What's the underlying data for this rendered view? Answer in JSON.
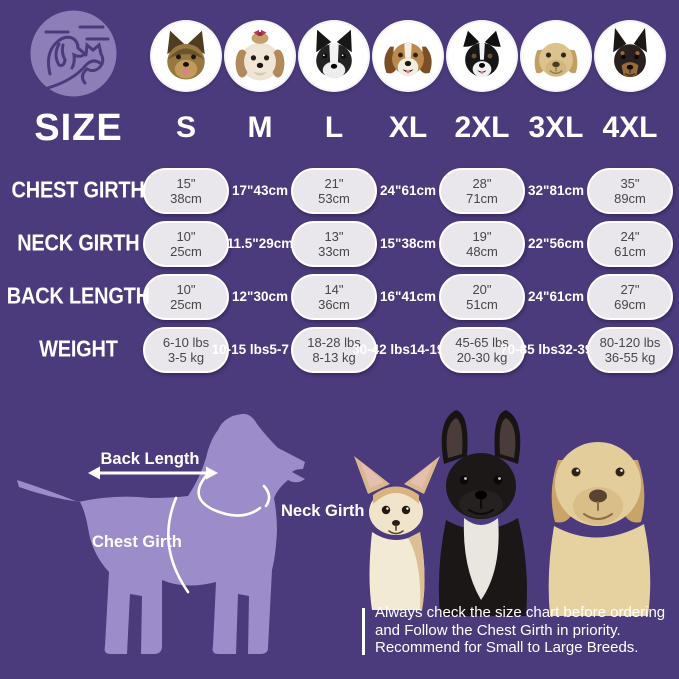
{
  "colors": {
    "background": "#4b3a7c",
    "pill_fill": "#e9e6ec",
    "silhouette": "#9c8cca",
    "logo_circle": "#8d7eb8"
  },
  "table": {
    "size_label": "SIZE",
    "sizes": [
      "S",
      "M",
      "L",
      "XL",
      "2XL",
      "3XL",
      "4XL"
    ],
    "breeds": [
      "yorkshire-terrier",
      "shih-tzu",
      "boston-terrier",
      "beagle",
      "border-collie",
      "labrador",
      "doberman"
    ],
    "rows": [
      {
        "label": "CHEST GIRTH",
        "values": [
          [
            "15\"",
            "38cm"
          ],
          [
            "17\"",
            "43cm"
          ],
          [
            "21\"",
            "53cm"
          ],
          [
            "24\"",
            "61cm"
          ],
          [
            "28\"",
            "71cm"
          ],
          [
            "32\"",
            "81cm"
          ],
          [
            "35\"",
            "89cm"
          ]
        ]
      },
      {
        "label": "NECK GIRTH",
        "values": [
          [
            "10\"",
            "25cm"
          ],
          [
            "11.5\"",
            "29cm"
          ],
          [
            "13\"",
            "33cm"
          ],
          [
            "15\"",
            "38cm"
          ],
          [
            "19\"",
            "48cm"
          ],
          [
            "22\"",
            "56cm"
          ],
          [
            "24\"",
            "61cm"
          ]
        ]
      },
      {
        "label": "BACK LENGTH",
        "values": [
          [
            "10\"",
            "25cm"
          ],
          [
            "12\"",
            "30cm"
          ],
          [
            "14\"",
            "36cm"
          ],
          [
            "16\"",
            "41cm"
          ],
          [
            "20\"",
            "51cm"
          ],
          [
            "24\"",
            "61cm"
          ],
          [
            "27\"",
            "69cm"
          ]
        ]
      },
      {
        "label": "WEIGHT",
        "values": [
          [
            "6-10 lbs",
            "3-5 kg"
          ],
          [
            "10-15 lbs",
            "5-7 kg"
          ],
          [
            "18-28 lbs",
            "8-13 kg"
          ],
          [
            "30-42 lbs",
            "14-19 kg"
          ],
          [
            "45-65 lbs",
            "20-30 kg"
          ],
          [
            "70-85 lbs",
            "32-39 kg"
          ],
          [
            "80-120 lbs",
            "36-55 kg"
          ]
        ]
      }
    ]
  },
  "diagram": {
    "back_length_label": "Back Length",
    "neck_girth_label": "Neck Girth",
    "chest_girth_label": "Chest Girth"
  },
  "note": {
    "line1": "Always check the size chart before ordering",
    "line2": "and Follow the Chest Girth in priority.",
    "line3": "Recommend for Small to Large Breeds."
  }
}
